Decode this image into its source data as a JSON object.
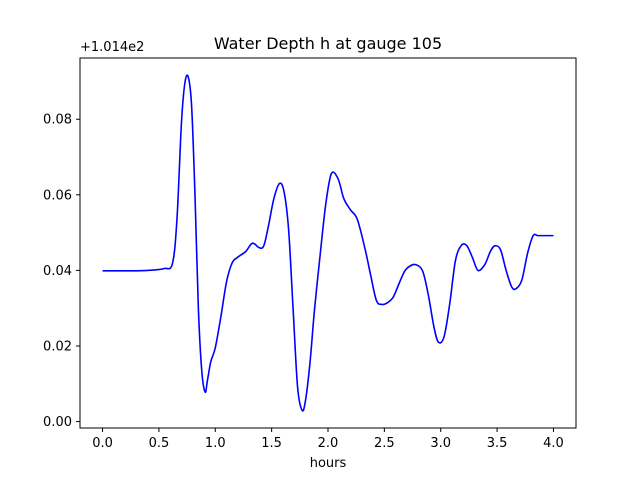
{
  "chart_data": {
    "type": "line",
    "title": "Water Depth h at gauge 105",
    "xlabel": "hours",
    "ylabel": "",
    "y_offset_label": "+1.014e2",
    "xlim": [
      -0.2,
      4.2
    ],
    "ylim": [
      -0.0017,
      0.0962
    ],
    "grid": false,
    "x_ticks": [
      0.0,
      0.5,
      1.0,
      1.5,
      2.0,
      2.5,
      3.0,
      3.5,
      4.0
    ],
    "x_tick_labels": [
      "0.0",
      "0.5",
      "1.0",
      "1.5",
      "2.0",
      "2.5",
      "3.0",
      "3.5",
      "4.0"
    ],
    "y_ticks": [
      0.0,
      0.02,
      0.04,
      0.06,
      0.08
    ],
    "y_tick_labels": [
      "0.00",
      "0.02",
      "0.04",
      "0.06",
      "0.08"
    ],
    "series": [
      {
        "color": "#0000ff",
        "x": [
          0.0,
          0.3,
          0.45,
          0.55,
          0.62,
          0.66,
          0.7,
          0.73,
          0.76,
          0.79,
          0.82,
          0.85,
          0.88,
          0.91,
          0.93,
          0.96,
          1.0,
          1.05,
          1.1,
          1.15,
          1.2,
          1.27,
          1.33,
          1.39,
          1.43,
          1.47,
          1.52,
          1.57,
          1.61,
          1.65,
          1.69,
          1.73,
          1.77,
          1.8,
          1.84,
          1.88,
          1.93,
          1.98,
          2.03,
          2.09,
          2.14,
          2.2,
          2.26,
          2.33,
          2.38,
          2.43,
          2.48,
          2.53,
          2.58,
          2.63,
          2.68,
          2.73,
          2.78,
          2.84,
          2.89,
          2.94,
          2.98,
          3.03,
          3.08,
          3.13,
          3.18,
          3.23,
          3.28,
          3.33,
          3.39,
          3.44,
          3.48,
          3.53,
          3.58,
          3.63,
          3.67,
          3.72,
          3.77,
          3.82,
          3.86,
          3.91,
          3.95,
          4.0
        ],
        "y": [
          0.0399,
          0.0399,
          0.0401,
          0.0405,
          0.0418,
          0.0535,
          0.079,
          0.0895,
          0.0912,
          0.0835,
          0.06,
          0.03,
          0.0135,
          0.0078,
          0.0108,
          0.0158,
          0.0195,
          0.0278,
          0.037,
          0.042,
          0.0435,
          0.045,
          0.0472,
          0.046,
          0.0465,
          0.0515,
          0.059,
          0.063,
          0.0608,
          0.051,
          0.03,
          0.0092,
          0.003,
          0.0055,
          0.0155,
          0.0295,
          0.044,
          0.0575,
          0.0656,
          0.0642,
          0.059,
          0.056,
          0.0535,
          0.0455,
          0.0385,
          0.032,
          0.031,
          0.0315,
          0.033,
          0.0365,
          0.0398,
          0.0412,
          0.0415,
          0.0398,
          0.0335,
          0.025,
          0.021,
          0.0225,
          0.0312,
          0.0425,
          0.0465,
          0.0466,
          0.0435,
          0.04,
          0.0415,
          0.045,
          0.0465,
          0.0455,
          0.04,
          0.0356,
          0.0352,
          0.0375,
          0.0445,
          0.0492,
          0.0492,
          0.0492,
          0.0492,
          0.0492
        ]
      }
    ]
  }
}
